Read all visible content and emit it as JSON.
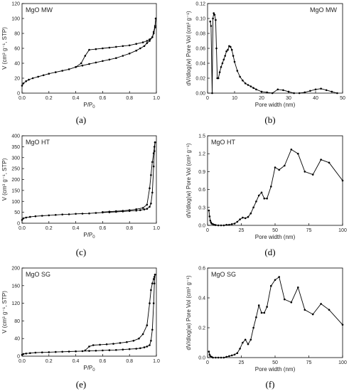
{
  "chart_data": [
    {
      "id": "a",
      "type": "line",
      "title": "MgO MW",
      "caption": "(a)",
      "xlabel": "P/P",
      "xlabel_sub": "0",
      "ylabel": "V (cm³ g⁻¹, STP)",
      "xlim": [
        0,
        1
      ],
      "ylim": [
        0,
        120
      ],
      "xticks": [
        0,
        0.2,
        0.4,
        0.6,
        0.8,
        1.0
      ],
      "xticklabels": [
        "0.0",
        "0.2",
        "0.4",
        "0.6",
        "0.8",
        "1.0"
      ],
      "yticks": [
        0,
        20,
        40,
        60,
        80,
        100,
        120
      ],
      "yticklabels": [
        "0",
        "20",
        "40",
        "60",
        "80",
        "100",
        "120"
      ],
      "series": [
        {
          "x": [
            0.0,
            0.01,
            0.03,
            0.05,
            0.08,
            0.12,
            0.16,
            0.2,
            0.25,
            0.3,
            0.35,
            0.4,
            0.45,
            0.5,
            0.55,
            0.6,
            0.65,
            0.7,
            0.75,
            0.8,
            0.85,
            0.88,
            0.91,
            0.93,
            0.95,
            0.97,
            0.98,
            0.99,
            0.995
          ],
          "y": [
            10,
            13,
            16,
            18,
            20,
            22,
            24,
            26,
            28,
            30,
            32,
            35,
            37,
            39,
            41,
            43,
            45,
            47,
            50,
            53,
            57,
            60,
            63,
            67,
            70,
            75,
            82,
            90,
            100
          ]
        },
        {
          "x": [
            0.995,
            0.99,
            0.98,
            0.97,
            0.95,
            0.93,
            0.9,
            0.85,
            0.8,
            0.75,
            0.7,
            0.65,
            0.6,
            0.55,
            0.5,
            0.47,
            0.44,
            0.4
          ],
          "y": [
            100,
            88,
            80,
            75,
            72,
            70,
            68,
            66,
            64,
            63,
            62,
            61,
            60,
            59,
            58,
            50,
            40,
            35
          ]
        }
      ]
    },
    {
      "id": "b",
      "type": "line",
      "title": "MgO MW",
      "caption": "(b)",
      "xlabel": "Pore width (nm)",
      "ylabel": "dV/dlog(w) Pore Vol (cm³ g⁻¹)",
      "xlim": [
        0,
        50
      ],
      "ylim": [
        0,
        0.12
      ],
      "xticks": [
        0,
        10,
        20,
        30,
        40,
        50
      ],
      "xticklabels": [
        "0",
        "10",
        "20",
        "30",
        "40",
        "50"
      ],
      "yticks": [
        0,
        0.02,
        0.04,
        0.06,
        0.08,
        0.1,
        0.12
      ],
      "yticklabels": [
        "0.00",
        "0.02",
        "0.04",
        "0.06",
        "0.08",
        "0.10",
        "0.12"
      ],
      "series": [
        {
          "x": [
            1.0,
            1.3,
            1.7,
            2.0,
            2.3,
            2.6,
            3.0,
            3.3,
            3.6,
            4.0,
            4.5,
            5.0,
            5.5,
            6.0,
            6.5,
            7.0,
            7.5,
            8.0,
            8.5,
            9.0,
            9.5,
            10.0,
            11,
            12,
            13,
            14,
            15,
            16,
            17,
            18,
            20,
            22,
            24,
            26,
            28,
            30,
            32,
            34,
            36,
            38,
            40,
            42,
            44,
            46,
            48
          ],
          "y": [
            0.096,
            0.09,
            0.0,
            0.1,
            0.107,
            0.105,
            0.098,
            0.06,
            0.02,
            0.02,
            0.028,
            0.035,
            0.04,
            0.045,
            0.05,
            0.056,
            0.058,
            0.063,
            0.062,
            0.058,
            0.05,
            0.042,
            0.03,
            0.022,
            0.017,
            0.013,
            0.011,
            0.009,
            0.007,
            0.005,
            0.002,
            0.001,
            0.0,
            0.005,
            0.004,
            0.002,
            0.0,
            0.0,
            0.001,
            0.003,
            0.005,
            0.006,
            0.004,
            0.002,
            0.0
          ]
        }
      ]
    },
    {
      "id": "c",
      "type": "line",
      "title": "MgO HT",
      "caption": "(c)",
      "xlabel": "P/P",
      "xlabel_sub": "0",
      "ylabel": "V (cm³ g⁻¹, STP)",
      "xlim": [
        0,
        1
      ],
      "ylim": [
        0,
        400
      ],
      "xticks": [
        0,
        0.2,
        0.4,
        0.6,
        0.8,
        1.0
      ],
      "xticklabels": [
        "0.0",
        "0.2",
        "0.4",
        "0.6",
        "0.8",
        "1.0"
      ],
      "yticks": [
        0,
        50,
        100,
        150,
        200,
        250,
        300,
        350,
        400
      ],
      "yticklabels": [
        "0",
        "50",
        "100",
        "150",
        "200",
        "250",
        "300",
        "350",
        "400"
      ],
      "series": [
        {
          "x": [
            0.0,
            0.01,
            0.03,
            0.06,
            0.1,
            0.15,
            0.2,
            0.25,
            0.3,
            0.35,
            0.4,
            0.45,
            0.5,
            0.55,
            0.6,
            0.65,
            0.7,
            0.75,
            0.8,
            0.85,
            0.88,
            0.91,
            0.93,
            0.95,
            0.96,
            0.97,
            0.98,
            0.985,
            0.99
          ],
          "y": [
            15,
            22,
            26,
            29,
            32,
            34,
            36,
            38,
            40,
            41,
            43,
            44,
            45,
            47,
            49,
            50,
            52,
            54,
            56,
            58,
            60,
            63,
            66,
            75,
            90,
            140,
            260,
            330,
            370
          ]
        },
        {
          "x": [
            0.99,
            0.985,
            0.98,
            0.97,
            0.96,
            0.95,
            0.93,
            0.9,
            0.85,
            0.8,
            0.75,
            0.7,
            0.65,
            0.6
          ],
          "y": [
            370,
            350,
            320,
            280,
            220,
            160,
            85,
            70,
            64,
            60,
            57,
            55,
            53,
            51
          ]
        }
      ]
    },
    {
      "id": "d",
      "type": "line",
      "title": "MgO HT",
      "caption": "(d)",
      "xlabel": "Pore width (nm)",
      "ylabel": "dV/dlog(w) Pore Vol (cm³ g⁻¹)",
      "xlim": [
        0,
        100
      ],
      "ylim": [
        0,
        1.5
      ],
      "xticks": [
        0,
        25,
        50,
        75,
        100
      ],
      "xticklabels": [
        "0",
        "25",
        "50",
        "75",
        "100"
      ],
      "yticks": [
        0,
        0.3,
        0.6,
        0.9,
        1.2,
        1.5
      ],
      "yticklabels": [
        "0.0",
        "0.3",
        "0.6",
        "0.9",
        "1.2",
        "1.5"
      ],
      "series": [
        {
          "x": [
            1.0,
            1.5,
            2,
            2.5,
            3,
            4,
            5,
            6,
            8,
            10,
            12,
            14,
            16,
            18,
            20,
            22,
            24,
            26,
            28,
            30,
            32,
            34,
            36,
            38,
            40,
            42,
            44,
            47,
            50,
            53,
            57,
            62,
            67,
            72,
            78,
            84,
            90,
            100
          ],
          "y": [
            0.25,
            0.15,
            0.08,
            0.05,
            0.03,
            0.02,
            0.01,
            0.005,
            0.0,
            0.0,
            0.0,
            0.01,
            0.01,
            0.02,
            0.03,
            0.06,
            0.1,
            0.13,
            0.12,
            0.14,
            0.2,
            0.3,
            0.4,
            0.5,
            0.55,
            0.45,
            0.45,
            0.65,
            0.97,
            0.93,
            1.0,
            1.27,
            1.2,
            0.9,
            0.85,
            1.1,
            1.05,
            0.75
          ]
        }
      ]
    },
    {
      "id": "e",
      "type": "line",
      "title": "MgO SG",
      "caption": "(e)",
      "xlabel": "P/P",
      "xlabel_sub": "0",
      "ylabel": "V (cm³ g⁻¹, STP)",
      "xlim": [
        0,
        1
      ],
      "ylim": [
        0,
        200
      ],
      "xticks": [
        0,
        0.2,
        0.4,
        0.6,
        0.8,
        1.0
      ],
      "xticklabels": [
        "0.0",
        "0.2",
        "0.4",
        "0.6",
        "0.8",
        "1.0"
      ],
      "yticks": [
        0,
        40,
        80,
        120,
        160,
        200
      ],
      "yticklabels": [
        "0",
        "40",
        "80",
        "120",
        "160",
        "200"
      ],
      "series": [
        {
          "x": [
            0.0,
            0.01,
            0.03,
            0.06,
            0.1,
            0.15,
            0.2,
            0.25,
            0.3,
            0.35,
            0.4,
            0.45,
            0.5,
            0.55,
            0.6,
            0.65,
            0.7,
            0.75,
            0.8,
            0.85,
            0.88,
            0.91,
            0.93,
            0.95,
            0.96,
            0.97,
            0.98,
            0.985,
            0.99
          ],
          "y": [
            3,
            5,
            6,
            7,
            8,
            8.5,
            9,
            9.5,
            10,
            10.5,
            11,
            11.5,
            12,
            12.5,
            13,
            13.5,
            14,
            15,
            16,
            17,
            18,
            20,
            22,
            25,
            35,
            60,
            120,
            165,
            185
          ]
        },
        {
          "x": [
            0.99,
            0.985,
            0.98,
            0.97,
            0.96,
            0.95,
            0.93,
            0.9,
            0.87,
            0.83,
            0.78,
            0.73,
            0.68,
            0.63,
            0.58,
            0.53,
            0.5,
            0.47
          ],
          "y": [
            185,
            180,
            175,
            165,
            150,
            120,
            70,
            50,
            40,
            35,
            32,
            30,
            28,
            27,
            26,
            25,
            22,
            13
          ]
        }
      ]
    },
    {
      "id": "f",
      "type": "line",
      "title": "MgO SG",
      "caption": "(f)",
      "xlabel": "Pore width (nm)",
      "ylabel": "dV/dlog(w) Pore Vol (cm³ g⁻¹)",
      "xlim": [
        0,
        100
      ],
      "ylim": [
        0,
        0.6
      ],
      "xticks": [
        0,
        25,
        50,
        75,
        100
      ],
      "xticklabels": [
        "0",
        "25",
        "50",
        "75",
        "100"
      ],
      "yticks": [
        0,
        0.2,
        0.4,
        0.6
      ],
      "yticklabels": [
        "0.0",
        "0.2",
        "0.4",
        "0.6"
      ],
      "series": [
        {
          "x": [
            1.0,
            1.5,
            2,
            3,
            4,
            6,
            8,
            10,
            12,
            14,
            16,
            18,
            20,
            22,
            24,
            26,
            28,
            30,
            32,
            34,
            36,
            38,
            40,
            42,
            44,
            47,
            50,
            53,
            57,
            62,
            67,
            72,
            78,
            84,
            90,
            100
          ],
          "y": [
            0.04,
            0.02,
            0.01,
            0.005,
            0.0,
            0.0,
            0.0,
            0.0,
            0.0,
            0.005,
            0.01,
            0.015,
            0.02,
            0.03,
            0.06,
            0.1,
            0.12,
            0.09,
            0.12,
            0.2,
            0.27,
            0.35,
            0.3,
            0.3,
            0.34,
            0.48,
            0.52,
            0.54,
            0.39,
            0.37,
            0.47,
            0.32,
            0.29,
            0.36,
            0.32,
            0.22
          ]
        }
      ]
    }
  ]
}
